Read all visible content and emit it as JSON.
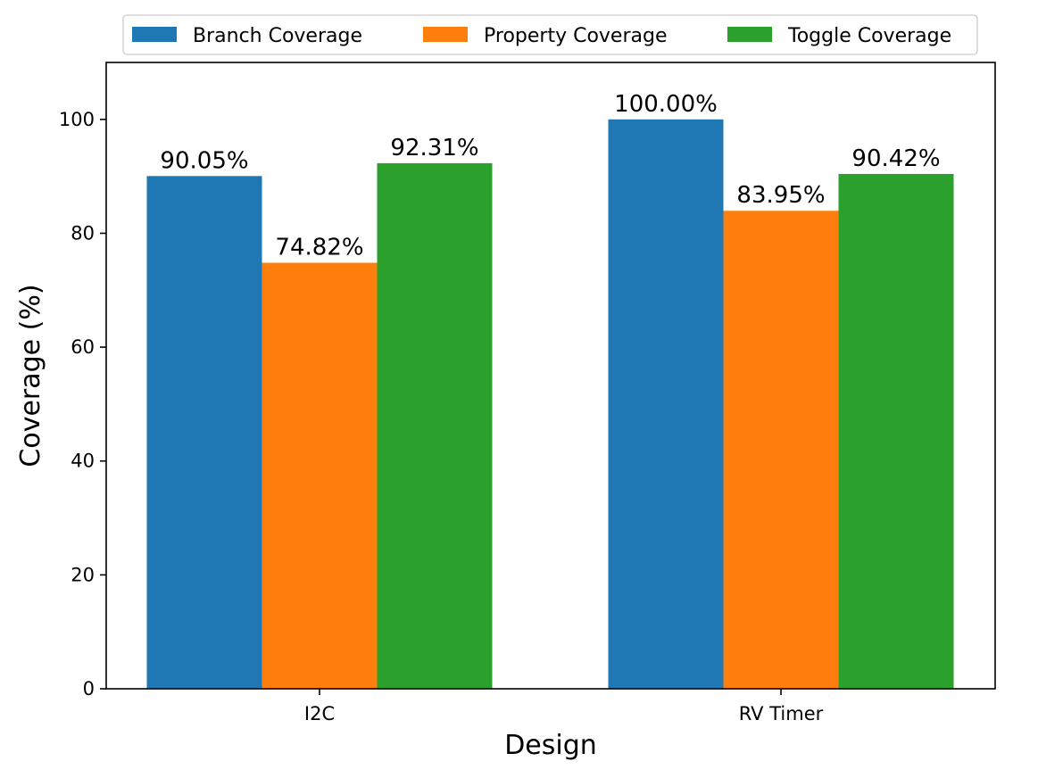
{
  "chart_data": {
    "type": "bar",
    "title": "",
    "xlabel": "Design",
    "ylabel": "Coverage (%)",
    "categories": [
      "I2C",
      "RV Timer"
    ],
    "ylim": [
      0,
      110
    ],
    "yticks": [
      "0",
      "20",
      "40",
      "60",
      "80",
      "100"
    ],
    "grid": false,
    "legend_position": "top-center",
    "series": [
      {
        "name": "Branch Coverage",
        "color": "#1f77b4",
        "values": [
          90.05,
          100.0
        ],
        "labels": [
          "90.05%",
          "100.00%"
        ]
      },
      {
        "name": "Property Coverage",
        "color": "#ff7f0e",
        "values": [
          74.82,
          83.95
        ],
        "labels": [
          "74.82%",
          "83.95%"
        ]
      },
      {
        "name": "Toggle Coverage",
        "color": "#2ca02c",
        "values": [
          92.31,
          90.42
        ],
        "labels": [
          "92.31%",
          "90.42%"
        ]
      }
    ]
  }
}
